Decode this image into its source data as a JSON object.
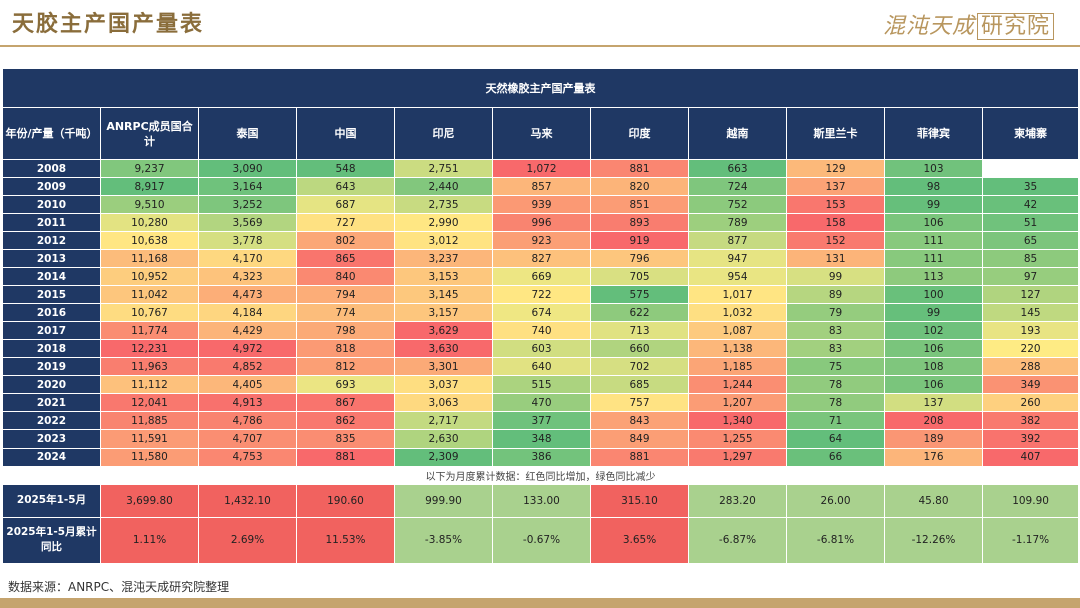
{
  "page": {
    "title": "天胶主产国产量表",
    "logo_text": "混沌天成",
    "logo_box": "研究院",
    "source": "数据来源：ANRPC、混沌天成研究院整理"
  },
  "table": {
    "caption": "天然橡胶主产国产量表",
    "corner": "年份/产量（千吨）",
    "columns": [
      "ANRPC成员国合计",
      "泰国",
      "中国",
      "印尼",
      "马来",
      "印度",
      "越南",
      "斯里兰卡",
      "菲律宾",
      "柬埔寨"
    ],
    "rows": [
      {
        "year": "2008",
        "values": [
          "9,237",
          "3,090",
          "548",
          "2,751",
          "1,072",
          "881",
          "663",
          "129",
          "103",
          ""
        ]
      },
      {
        "year": "2009",
        "values": [
          "8,917",
          "3,164",
          "643",
          "2,440",
          "857",
          "820",
          "724",
          "137",
          "98",
          "35"
        ]
      },
      {
        "year": "2010",
        "values": [
          "9,510",
          "3,252",
          "687",
          "2,735",
          "939",
          "851",
          "752",
          "153",
          "99",
          "42"
        ]
      },
      {
        "year": "2011",
        "values": [
          "10,280",
          "3,569",
          "727",
          "2,990",
          "996",
          "893",
          "789",
          "158",
          "106",
          "51"
        ]
      },
      {
        "year": "2012",
        "values": [
          "10,638",
          "3,778",
          "802",
          "3,012",
          "923",
          "919",
          "877",
          "152",
          "111",
          "65"
        ]
      },
      {
        "year": "2013",
        "values": [
          "11,168",
          "4,170",
          "865",
          "3,237",
          "827",
          "796",
          "947",
          "131",
          "111",
          "85"
        ]
      },
      {
        "year": "2014",
        "values": [
          "10,952",
          "4,323",
          "840",
          "3,153",
          "669",
          "705",
          "954",
          "99",
          "113",
          "97"
        ]
      },
      {
        "year": "2015",
        "values": [
          "11,042",
          "4,473",
          "794",
          "3,145",
          "722",
          "575",
          "1,017",
          "89",
          "100",
          "127"
        ]
      },
      {
        "year": "2016",
        "values": [
          "10,767",
          "4,184",
          "774",
          "3,157",
          "674",
          "622",
          "1,032",
          "79",
          "99",
          "145"
        ]
      },
      {
        "year": "2017",
        "values": [
          "11,774",
          "4,429",
          "798",
          "3,629",
          "740",
          "713",
          "1,087",
          "83",
          "102",
          "193"
        ]
      },
      {
        "year": "2018",
        "values": [
          "12,231",
          "4,972",
          "818",
          "3,630",
          "603",
          "660",
          "1,138",
          "83",
          "106",
          "220"
        ]
      },
      {
        "year": "2019",
        "values": [
          "11,963",
          "4,852",
          "812",
          "3,301",
          "640",
          "702",
          "1,185",
          "75",
          "108",
          "288"
        ]
      },
      {
        "year": "2020",
        "values": [
          "11,112",
          "4,405",
          "693",
          "3,037",
          "515",
          "685",
          "1,244",
          "78",
          "106",
          "349"
        ]
      },
      {
        "year": "2021",
        "values": [
          "12,041",
          "4,913",
          "867",
          "3,063",
          "470",
          "757",
          "1,207",
          "78",
          "137",
          "260"
        ]
      },
      {
        "year": "2022",
        "values": [
          "11,885",
          "4,786",
          "862",
          "2,717",
          "377",
          "843",
          "1,340",
          "71",
          "208",
          "382"
        ]
      },
      {
        "year": "2023",
        "values": [
          "11,591",
          "4,707",
          "835",
          "2,630",
          "348",
          "849",
          "1,255",
          "64",
          "189",
          "392"
        ]
      },
      {
        "year": "2024",
        "values": [
          "11,580",
          "4,753",
          "881",
          "2,309",
          "386",
          "881",
          "1,297",
          "66",
          "176",
          "407"
        ]
      }
    ],
    "note": "以下为月度累计数据：红色同比增加，绿色同比减少",
    "summary": {
      "label": "2025年1-5月",
      "values": [
        "3,699.80",
        "1,432.10",
        "190.60",
        "999.90",
        "133.00",
        "315.10",
        "283.20",
        "26.00",
        "45.80",
        "109.90"
      ],
      "status": [
        "up",
        "up",
        "up",
        "down",
        "down",
        "up",
        "down",
        "down",
        "down",
        "down"
      ]
    },
    "yoy": {
      "label": "2025年1-5月累计同比",
      "values": [
        "1.11%",
        "2.69%",
        "11.53%",
        "-3.85%",
        "-0.67%",
        "3.65%",
        "-6.87%",
        "-6.81%",
        "-12.26%",
        "-1.17%"
      ]
    }
  },
  "colors": {
    "header_navy": "#1f3864",
    "scale_green": "#63be7b",
    "scale_yellow": "#ffeb84",
    "scale_red": "#f8696b",
    "increase_red": "#f1625f",
    "decrease_green": "#a9d18e",
    "accent_gold": "#c5a46e"
  }
}
